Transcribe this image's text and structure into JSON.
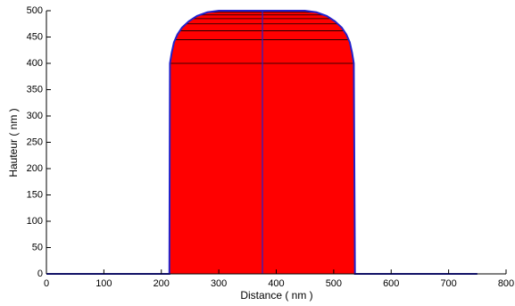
{
  "chart_data": {
    "type": "area",
    "xlabel": "Distance ( nm )",
    "ylabel": "Hauteur ( nm )",
    "x": [
      0,
      214,
      215,
      218,
      222,
      228,
      236,
      248,
      262,
      280,
      300,
      450,
      470,
      488,
      502,
      514,
      522,
      528,
      532,
      535,
      537,
      750
    ],
    "y": [
      0,
      0,
      400,
      420,
      440,
      455,
      468,
      480,
      490,
      497,
      500,
      500,
      497,
      490,
      480,
      468,
      455,
      440,
      420,
      400,
      0,
      0
    ],
    "fill_color": "#ff0000",
    "line_color": "#2222cc",
    "hlines": [
      400,
      445,
      462,
      475,
      485,
      492,
      497
    ],
    "vline": 376,
    "xlim": [
      0,
      800
    ],
    "xticks": [
      0,
      100,
      200,
      300,
      400,
      500,
      600,
      700,
      800
    ],
    "ylim": [
      0,
      500
    ],
    "yticks": [
      0,
      50,
      100,
      150,
      200,
      250,
      300,
      350,
      400,
      450,
      500
    ]
  }
}
